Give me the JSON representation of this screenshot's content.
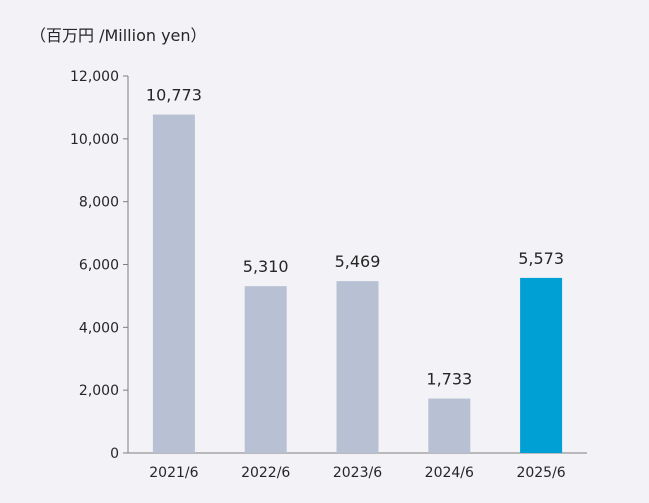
{
  "unit_label": "（百万円 /Million yen）",
  "chart_data": {
    "type": "bar",
    "title": "",
    "xlabel": "",
    "ylabel": "",
    "unit": "（百万円 /Million yen）",
    "categories": [
      "2021/6",
      "2022/6",
      "2023/6",
      "2024/6",
      "2025/6"
    ],
    "values": [
      10773,
      5310,
      5469,
      1733,
      5573
    ],
    "value_labels": [
      "10,773",
      "5,310",
      "5,469",
      "1,733",
      "5,573"
    ],
    "ylim": [
      0,
      12000
    ],
    "yticks": [
      0,
      2000,
      4000,
      6000,
      8000,
      10000,
      12000
    ],
    "ytick_labels": [
      "0",
      "2,000",
      "4,000",
      "6,000",
      "8,000",
      "10,000",
      "12,000"
    ],
    "grid": false,
    "legend": "none",
    "colors": {
      "default_bar": "#b8c1d3",
      "highlight_bar": "#009fd4",
      "axis": "#808080"
    },
    "highlight_index": 4
  }
}
